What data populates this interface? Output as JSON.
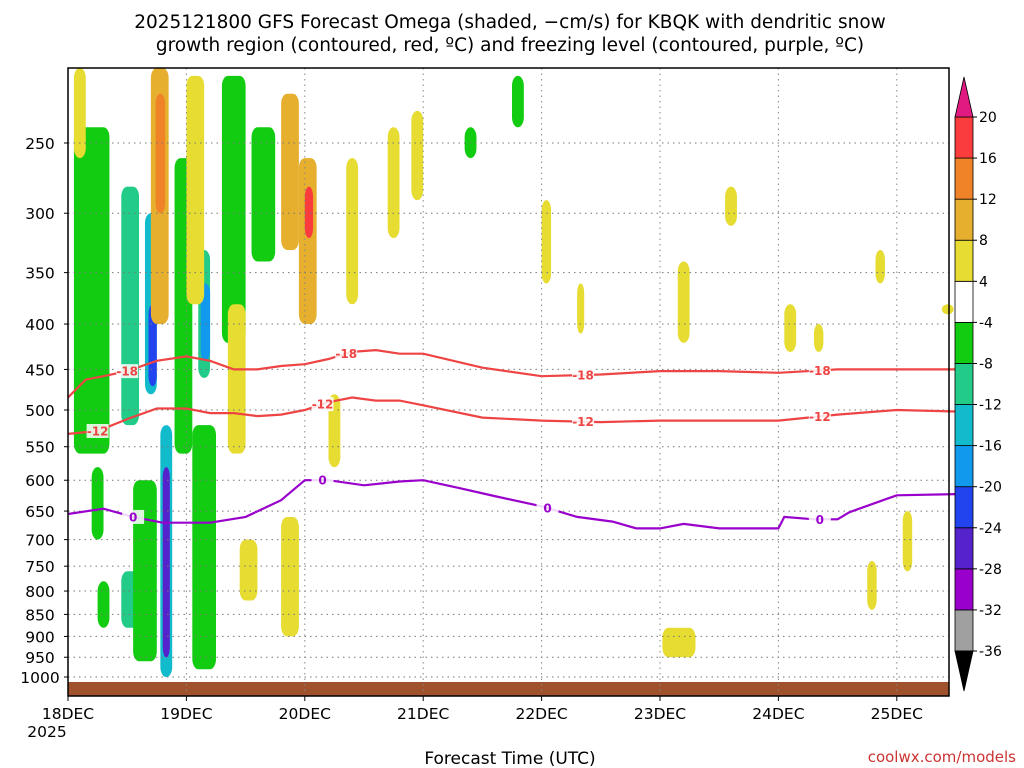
{
  "title": {
    "line1": "2025121800 GFS Forecast Omega (shaded, −cm/s) for KBQK with dendritic snow",
    "line2": "growth region (contoured, red, ºC) and freezing level (contoured, purple, ºC)"
  },
  "credit": "coolwx.com/models",
  "chart_data": {
    "type": "heatmap",
    "title": "2025121800 GFS Forecast Omega (shaded, −cm/s) for KBQK with dendritic snow growth region (contoured, red, ºC) and freezing level (contoured, purple, ºC)",
    "xlabel": "Forecast Time (UTC)",
    "ylabel": "",
    "x_unit": "days since 18DEC 00Z",
    "xlim": [
      0,
      7.5
    ],
    "ylim_hpa": [
      1040,
      200
    ],
    "y_scale": "log",
    "x_ticks": [
      {
        "value": 0,
        "label": "18DEC"
      },
      {
        "value": 1,
        "label": "19DEC"
      },
      {
        "value": 2,
        "label": "20DEC"
      },
      {
        "value": 3,
        "label": "21DEC"
      },
      {
        "value": 4,
        "label": "22DEC"
      },
      {
        "value": 5,
        "label": "23DEC"
      },
      {
        "value": 6,
        "label": "24DEC"
      },
      {
        "value": 7,
        "label": "25DEC"
      }
    ],
    "x_year_label": "2025",
    "y_ticks": [
      250,
      300,
      350,
      400,
      450,
      500,
      550,
      600,
      650,
      700,
      750,
      800,
      850,
      900,
      950,
      1000
    ],
    "grid": true,
    "colorbar": {
      "levels": [
        -36,
        -32,
        -28,
        -24,
        -20,
        -16,
        -12,
        -8,
        -4,
        4,
        8,
        12,
        16,
        20
      ],
      "colors": [
        "#a0a0a0",
        "#9900cc",
        "#5522cc",
        "#2244ee",
        "#1199ee",
        "#11bbcc",
        "#22cc88",
        "#11cc11",
        "#ffffff",
        "#e6dc32",
        "#e6af2d",
        "#f08228",
        "#fa3c3c"
      ],
      "under_color": "#000000",
      "over_color": "#e01a80"
    },
    "surface_color": "#a0522d",
    "contours": [
      {
        "name": "-18 C isotherm",
        "color": "#ee4444",
        "label": "-18",
        "points": [
          [
            0,
            484
          ],
          [
            0.15,
            462
          ],
          [
            0.3,
            458
          ],
          [
            0.5,
            452
          ],
          [
            0.75,
            440
          ],
          [
            1.0,
            435
          ],
          [
            1.2,
            440
          ],
          [
            1.4,
            450
          ],
          [
            1.6,
            450
          ],
          [
            1.8,
            446
          ],
          [
            2.0,
            444
          ],
          [
            2.2,
            438
          ],
          [
            2.4,
            430
          ],
          [
            2.6,
            428
          ],
          [
            2.8,
            432
          ],
          [
            3.0,
            432
          ],
          [
            3.5,
            448
          ],
          [
            4.0,
            458
          ],
          [
            4.5,
            456
          ],
          [
            5.0,
            452
          ],
          [
            5.5,
            452
          ],
          [
            6.0,
            454
          ],
          [
            6.5,
            450
          ],
          [
            7.0,
            450
          ],
          [
            7.5,
            450
          ]
        ],
        "label_x": [
          0.5,
          2.35,
          4.35,
          6.35
        ]
      },
      {
        "name": "-12 C isotherm",
        "color": "#ee4444",
        "label": "-12",
        "points": [
          [
            0,
            532
          ],
          [
            0.25,
            528
          ],
          [
            0.5,
            512
          ],
          [
            0.75,
            498
          ],
          [
            1.0,
            498
          ],
          [
            1.2,
            504
          ],
          [
            1.4,
            504
          ],
          [
            1.6,
            508
          ],
          [
            1.8,
            506
          ],
          [
            2.0,
            500
          ],
          [
            2.2,
            490
          ],
          [
            2.4,
            484
          ],
          [
            2.6,
            488
          ],
          [
            2.8,
            488
          ],
          [
            3.0,
            494
          ],
          [
            3.5,
            510
          ],
          [
            4.0,
            514
          ],
          [
            4.5,
            516
          ],
          [
            5.0,
            514
          ],
          [
            5.5,
            514
          ],
          [
            6.0,
            514
          ],
          [
            6.5,
            506
          ],
          [
            7.0,
            500
          ],
          [
            7.5,
            502
          ]
        ],
        "label_x": [
          0.25,
          2.15,
          4.35,
          6.35
        ]
      },
      {
        "name": "0 C freezing level",
        "color": "#9900cc",
        "label": "0",
        "points": [
          [
            0,
            655
          ],
          [
            0.3,
            646
          ],
          [
            0.55,
            660
          ],
          [
            0.8,
            670
          ],
          [
            1.0,
            670
          ],
          [
            1.2,
            670
          ],
          [
            1.5,
            660
          ],
          [
            1.8,
            632
          ],
          [
            2.0,
            600
          ],
          [
            2.2,
            600
          ],
          [
            2.5,
            608
          ],
          [
            2.8,
            602
          ],
          [
            3.0,
            600
          ],
          [
            3.3,
            612
          ],
          [
            3.6,
            625
          ],
          [
            4.0,
            642
          ],
          [
            4.3,
            660
          ],
          [
            4.6,
            668
          ],
          [
            4.8,
            680
          ],
          [
            5.0,
            680
          ],
          [
            5.2,
            672
          ],
          [
            5.5,
            680
          ],
          [
            6.0,
            680
          ],
          [
            6.05,
            660
          ],
          [
            6.3,
            664
          ],
          [
            6.5,
            664
          ],
          [
            6.6,
            652
          ],
          [
            7.0,
            624
          ],
          [
            7.5,
            622
          ]
        ],
        "label_x": [
          0.55,
          2.15,
          4.05,
          6.35
        ]
      }
    ],
    "omega_features": [
      {
        "x": [
          0.05,
          0.35
        ],
        "p": [
          240,
          560
        ],
        "value": -6
      },
      {
        "x": [
          0.2,
          0.3
        ],
        "p": [
          580,
          700
        ],
        "value": -6
      },
      {
        "x": [
          0.25,
          0.35
        ],
        "p": [
          780,
          880
        ],
        "value": -6
      },
      {
        "x": [
          0.45,
          0.6
        ],
        "p": [
          280,
          520
        ],
        "value": -10
      },
      {
        "x": [
          0.45,
          0.6
        ],
        "p": [
          760,
          880
        ],
        "value": -10
      },
      {
        "x": [
          0.55,
          0.75
        ],
        "p": [
          600,
          960
        ],
        "value": -6
      },
      {
        "x": [
          0.65,
          0.75
        ],
        "p": [
          300,
          480
        ],
        "value": -14
      },
      {
        "x": [
          0.68,
          0.75
        ],
        "p": [
          380,
          470
        ],
        "value": -22
      },
      {
        "x": [
          0.78,
          0.88
        ],
        "p": [
          520,
          1000
        ],
        "value": -14
      },
      {
        "x": [
          0.8,
          0.86
        ],
        "p": [
          580,
          950
        ],
        "value": -26
      },
      {
        "x": [
          0.9,
          1.05
        ],
        "p": [
          260,
          560
        ],
        "value": -6
      },
      {
        "x": [
          1.1,
          1.2
        ],
        "p": [
          330,
          460
        ],
        "value": -12
      },
      {
        "x": [
          1.12,
          1.2
        ],
        "p": [
          360,
          440
        ],
        "value": -18
      },
      {
        "x": [
          1.05,
          1.25
        ],
        "p": [
          520,
          980
        ],
        "value": -6
      },
      {
        "x": [
          1.3,
          1.5
        ],
        "p": [
          210,
          420
        ],
        "value": -6
      },
      {
        "x": [
          1.55,
          1.75
        ],
        "p": [
          240,
          340
        ],
        "value": -6
      },
      {
        "x": [
          0.7,
          0.85
        ],
        "p": [
          200,
          400
        ],
        "value": 10
      },
      {
        "x": [
          0.74,
          0.82
        ],
        "p": [
          220,
          300
        ],
        "value": 14
      },
      {
        "x": [
          0.05,
          0.15
        ],
        "p": [
          200,
          260
        ],
        "value": 5
      },
      {
        "x": [
          1.0,
          1.15
        ],
        "p": [
          210,
          380
        ],
        "value": 6
      },
      {
        "x": [
          1.35,
          1.5
        ],
        "p": [
          380,
          560
        ],
        "value": 5
      },
      {
        "x": [
          1.45,
          1.6
        ],
        "p": [
          700,
          820
        ],
        "value": 5
      },
      {
        "x": [
          1.8,
          1.95
        ],
        "p": [
          220,
          330
        ],
        "value": 8
      },
      {
        "x": [
          1.95,
          2.1
        ],
        "p": [
          260,
          400
        ],
        "value": 10
      },
      {
        "x": [
          2.0,
          2.07
        ],
        "p": [
          280,
          320
        ],
        "value": 16
      },
      {
        "x": [
          1.8,
          1.95
        ],
        "p": [
          660,
          900
        ],
        "value": 5
      },
      {
        "x": [
          2.35,
          2.45
        ],
        "p": [
          260,
          380
        ],
        "value": 5
      },
      {
        "x": [
          2.2,
          2.3
        ],
        "p": [
          480,
          580
        ],
        "value": 5
      },
      {
        "x": [
          2.7,
          2.8
        ],
        "p": [
          240,
          320
        ],
        "value": 5
      },
      {
        "x": [
          2.9,
          3.0
        ],
        "p": [
          230,
          290
        ],
        "value": 5
      },
      {
        "x": [
          3.35,
          3.45
        ],
        "p": [
          240,
          260
        ],
        "value": -6
      },
      {
        "x": [
          3.75,
          3.85
        ],
        "p": [
          210,
          240
        ],
        "value": -6
      },
      {
        "x": [
          4.0,
          4.08
        ],
        "p": [
          290,
          360
        ],
        "value": 5
      },
      {
        "x": [
          4.3,
          4.36
        ],
        "p": [
          360,
          410
        ],
        "value": 5
      },
      {
        "x": [
          5.15,
          5.25
        ],
        "p": [
          340,
          420
        ],
        "value": 5
      },
      {
        "x": [
          5.55,
          5.65
        ],
        "p": [
          280,
          310
        ],
        "value": 5
      },
      {
        "x": [
          6.05,
          6.15
        ],
        "p": [
          380,
          430
        ],
        "value": 5
      },
      {
        "x": [
          6.3,
          6.38
        ],
        "p": [
          400,
          430
        ],
        "value": 5
      },
      {
        "x": [
          6.82,
          6.9
        ],
        "p": [
          330,
          360
        ],
        "value": 5
      },
      {
        "x": [
          7.38,
          7.48
        ],
        "p": [
          380,
          390
        ],
        "value": 5
      },
      {
        "x": [
          7.05,
          7.13
        ],
        "p": [
          650,
          760
        ],
        "value": 5
      },
      {
        "x": [
          6.75,
          6.83
        ],
        "p": [
          740,
          840
        ],
        "value": 5
      },
      {
        "x": [
          5.02,
          5.3
        ],
        "p": [
          880,
          950
        ],
        "value": 5
      }
    ]
  }
}
